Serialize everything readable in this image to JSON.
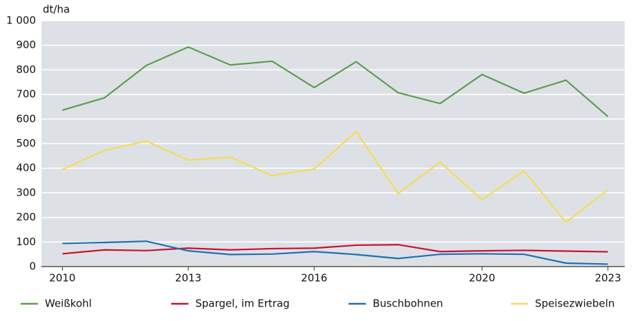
{
  "chart_data": {
    "type": "line",
    "y_label": "dt/ha",
    "x": [
      2010,
      2011,
      2012,
      2013,
      2014,
      2015,
      2016,
      2017,
      2018,
      2019,
      2020,
      2021,
      2022,
      2023
    ],
    "xlim": [
      2009.5,
      2023.4
    ],
    "xticks": [
      2010,
      2013,
      2016,
      2020,
      2023
    ],
    "ylim": [
      0,
      1000
    ],
    "yticks": [
      0,
      100,
      200,
      300,
      400,
      500,
      600,
      700,
      800,
      900,
      {
        "value": 1000,
        "label": "1 000"
      }
    ],
    "grid": true,
    "legend": "bottom",
    "series": [
      {
        "name": "Weißkohl",
        "color": "#5a9e4e",
        "values": [
          636,
          686,
          818,
          893,
          820,
          835,
          728,
          833,
          707,
          663,
          781,
          705,
          758,
          610
        ]
      },
      {
        "name": "Spargel, im Ertrag",
        "color": "#c8102e",
        "values": [
          52,
          68,
          65,
          75,
          68,
          73,
          75,
          87,
          89,
          61,
          64,
          66,
          63,
          60
        ]
      },
      {
        "name": "Buschbohnen",
        "color": "#1f6fb2",
        "values": [
          94,
          98,
          103,
          64,
          49,
          51,
          61,
          49,
          33,
          50,
          52,
          50,
          14,
          10
        ]
      },
      {
        "name": "Speisezwiebeln",
        "color": "#f5dc50",
        "values": [
          395,
          472,
          510,
          433,
          445,
          370,
          397,
          549,
          297,
          425,
          272,
          390,
          180,
          312
        ]
      }
    ]
  }
}
